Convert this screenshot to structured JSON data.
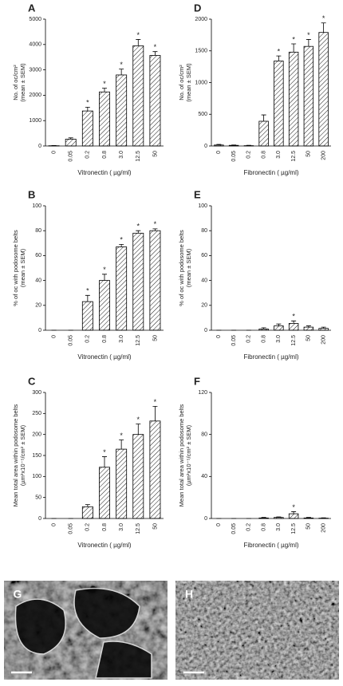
{
  "chart_data": [
    {
      "type": "bar",
      "label": "A",
      "y_label": [
        "No. of oc/cm²",
        "(mean ± SEM)"
      ],
      "x_label": "Vitronectin ( µg/ml)",
      "categories": [
        "0",
        "0.05",
        "0.2",
        "0.8",
        "3.0",
        "12.5",
        "50"
      ],
      "values": [
        10,
        270,
        1380,
        2130,
        2800,
        3950,
        3570
      ],
      "errors": [
        10,
        50,
        150,
        150,
        230,
        250,
        150
      ],
      "significance": [
        null,
        null,
        "*",
        "*",
        "*",
        "*",
        "*"
      ],
      "ylim": [
        0,
        5000
      ],
      "yticks": [
        0,
        1000,
        2000,
        3000,
        4000,
        5000
      ],
      "color": "#000000"
    },
    {
      "type": "bar",
      "label": "D",
      "y_label": [
        "No. of oc/cm²",
        "(mean ± SEM)"
      ],
      "x_label": "Fibronectin ( µg/ml)",
      "categories": [
        "0",
        "0.05",
        "0.2",
        "0.8",
        "3.0",
        "12.5",
        "50",
        "200"
      ],
      "values": [
        15,
        10,
        5,
        390,
        1340,
        1480,
        1570,
        1790
      ],
      "errors": [
        10,
        5,
        5,
        100,
        80,
        130,
        110,
        150
      ],
      "significance": [
        null,
        null,
        null,
        null,
        "*",
        "*",
        "*",
        "*"
      ],
      "ylim": [
        0,
        2000
      ],
      "yticks": [
        0,
        500,
        1000,
        1500,
        2000
      ],
      "color": "#000000"
    },
    {
      "type": "bar",
      "label": "B",
      "y_label": [
        "% of oc with podosome belts",
        "(mean ± SEM)"
      ],
      "x_label": "Vitronectin ( µg/ml)",
      "categories": [
        "0",
        "0.05",
        "0.2",
        "0.8",
        "3.0",
        "12.5",
        "50"
      ],
      "values": [
        0,
        0,
        23,
        40,
        67,
        78,
        80
      ],
      "errors": [
        0,
        0,
        5,
        5,
        2,
        2,
        1.5
      ],
      "significance": [
        null,
        null,
        "*",
        "*",
        "*",
        "*",
        "*"
      ],
      "ylim": [
        0,
        100
      ],
      "yticks": [
        0,
        20,
        40,
        60,
        80,
        100
      ],
      "color": "#000000"
    },
    {
      "type": "bar",
      "label": "E",
      "y_label": [
        "% of oc with podosome belts",
        "(mean ± SEM)"
      ],
      "x_label": "Fibronectin ( µg/ml)",
      "categories": [
        "0",
        "0.05",
        "0.2",
        "0.8",
        "3.0",
        "12.5",
        "50",
        "200"
      ],
      "values": [
        0,
        0,
        0,
        1,
        3.5,
        5.5,
        2.5,
        1.5
      ],
      "errors": [
        0,
        0,
        0,
        1,
        1.5,
        2,
        1,
        1
      ],
      "significance": [
        null,
        null,
        null,
        null,
        null,
        "*",
        null,
        null
      ],
      "ylim": [
        0,
        100
      ],
      "yticks": [
        0,
        20,
        40,
        60,
        80,
        100
      ],
      "color": "#000000"
    },
    {
      "type": "bar",
      "label": "C",
      "y_label": [
        "Mean total area within podosome belts",
        "(µm²x10⁻⁵/cm² ± SEM)"
      ],
      "x_label": "Vitronectin ( µg/ml)",
      "categories": [
        "0",
        "0.05",
        "0.2",
        "0.8",
        "3.0",
        "12.5",
        "50"
      ],
      "values": [
        0,
        0,
        28,
        122,
        165,
        200,
        232
      ],
      "errors": [
        0,
        0,
        5,
        25,
        22,
        25,
        35
      ],
      "significance": [
        null,
        null,
        null,
        "*",
        "*",
        "*",
        "*"
      ],
      "ylim": [
        0,
        300
      ],
      "yticks": [
        0,
        50,
        100,
        150,
        200,
        250,
        300
      ],
      "color": "#000000"
    },
    {
      "type": "bar",
      "label": "F",
      "y_label": [
        "Mean total area within podosome belts",
        "(µm²x10⁻⁵/cm² ± SEM)"
      ],
      "x_label": "Fibronectin ( µg/ml)",
      "categories": [
        "0",
        "0.05",
        "0.2",
        "0.8",
        "3.0",
        "12.5",
        "50",
        "200"
      ],
      "values": [
        0,
        0,
        0,
        0.5,
        1,
        4.5,
        0.5,
        0.3
      ],
      "errors": [
        0,
        0,
        0,
        0.5,
        0.5,
        2,
        0.5,
        0.3
      ],
      "significance": [
        null,
        null,
        null,
        null,
        null,
        "*",
        null,
        null
      ],
      "ylim": [
        0,
        120
      ],
      "yticks": [
        0,
        40,
        80,
        120
      ],
      "color": "#000000"
    }
  ],
  "images": [
    {
      "label": "G"
    },
    {
      "label": "H"
    }
  ]
}
